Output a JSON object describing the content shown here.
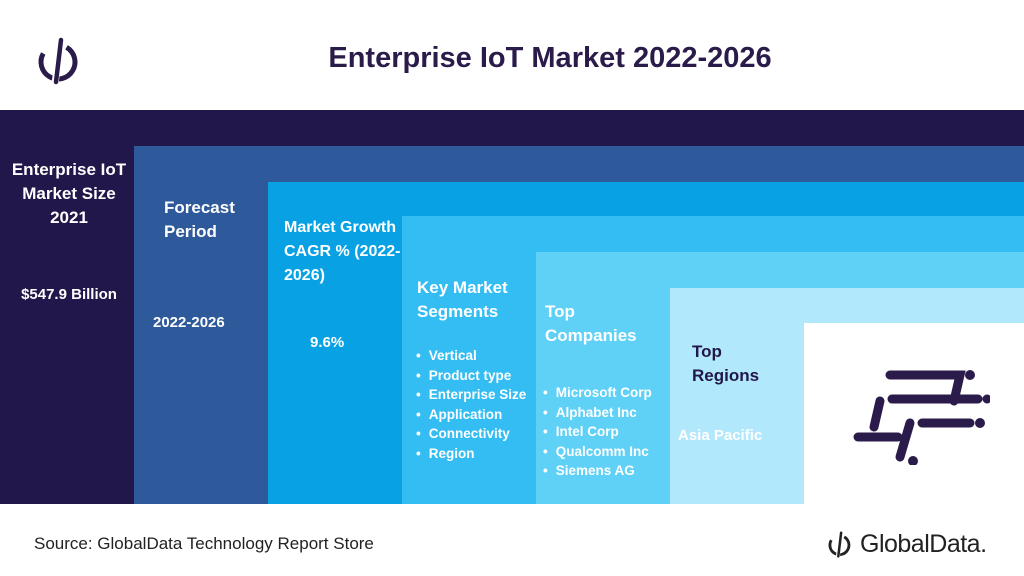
{
  "title": "Enterprise IoT Market 2022-2026",
  "colors": {
    "step1": "#22174a",
    "step2": "#2e5a9c",
    "step3": "#08a2e4",
    "step4": "#34bdf2",
    "step5": "#5fd1f6",
    "step6": "#b2e8fb",
    "accent_dark": "#2a1b4a"
  },
  "steps": [
    {
      "label": "Enterprise IoT Market Size 2021",
      "value": "$547.9 Billion"
    },
    {
      "label": "Forecast Period",
      "value": "2022-2026"
    },
    {
      "label": "Market Growth CAGR % (2022-2026)",
      "value": "9.6%"
    },
    {
      "label": "Key Market Segments",
      "items": [
        "Vertical",
        "Product type",
        "Enterprise Size",
        "Application",
        "Connectivity",
        "Region"
      ]
    },
    {
      "label": "Top Companies",
      "items": [
        "Microsoft Corp",
        "Alphabet Inc",
        "Intel Corp",
        "Qualcomm Inc",
        "Siemens AG"
      ]
    },
    {
      "label": "Top Regions",
      "value": "Asia Pacific"
    }
  ],
  "footer": {
    "source": "Source: GlobalData Technology Report Store",
    "brand": "GlobalData."
  },
  "icons": {
    "top_logo": "globaldata-logo-icon",
    "brand_logo": "globaldata-logo-icon",
    "graphic": "iot-circuit-icon"
  }
}
